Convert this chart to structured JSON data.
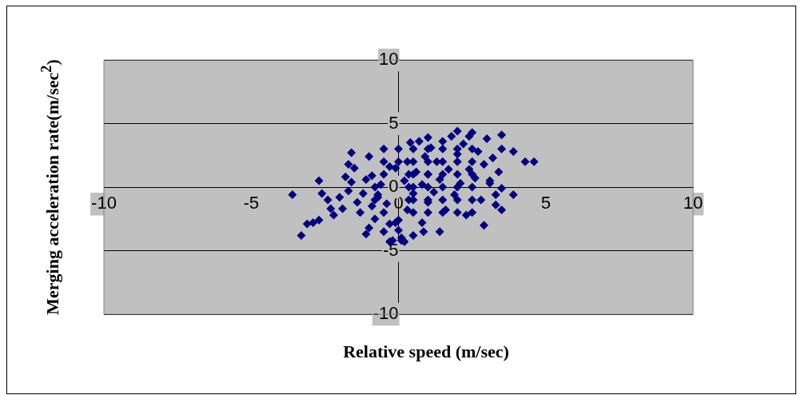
{
  "chart_data": {
    "type": "scatter",
    "xlabel": "Relative speed (m/sec)",
    "ylabel": "Merging acceleration rate(m/sec$^{2}$)",
    "xlim": [
      -10,
      10
    ],
    "xticks": [
      -10,
      -5,
      0,
      5,
      10
    ],
    "ylim": [
      -10,
      10
    ],
    "yticks": [
      -10,
      -5,
      0,
      5,
      10
    ],
    "grid": "y",
    "legend": false,
    "marker": "diamond",
    "series": [
      {
        "color": "#000080",
        "x": [
          -3.6,
          -3.3,
          -3.1,
          -2.9,
          -2.7,
          -2.6,
          -2.7,
          -2.4,
          -2.3,
          -2.2,
          -2.0,
          -1.9,
          -1.8,
          -1.7,
          -1.6,
          -1.7,
          -1.6,
          -1.5,
          -1.4,
          -1.3,
          -1.2,
          -1.1,
          -1.0,
          -1.0,
          -0.9,
          -0.8,
          -0.7,
          -0.6,
          -0.5,
          -0.4,
          -0.3,
          -0.2,
          -0.1,
          0,
          -0.7,
          -0.9,
          -0.3,
          -0.1,
          0.1,
          0.2,
          0.3,
          0.2,
          0.3,
          0.4,
          0.5,
          0.6,
          0.7,
          0.8,
          0.8,
          0.9,
          1.0,
          1.0,
          1.1,
          1.2,
          1.3,
          1.4,
          1.4,
          1.5,
          1.6,
          1.7,
          1.8,
          1.9,
          2.0,
          2.1,
          2.2,
          2.3,
          2.4,
          2.5,
          2.6,
          2.7,
          2.8,
          2.9,
          3.0,
          3.1,
          3.2,
          3.3,
          3.4,
          3.5,
          2.9,
          4.6,
          4.3,
          3.9,
          3.5,
          3.1,
          3.5,
          3.9,
          3.5,
          3.3,
          2.0,
          2.4,
          1.0,
          0.85,
          0.5,
          -0.3,
          0.1,
          -1.1,
          -0.5,
          -0.8,
          -0.8,
          -0.5,
          -0.5,
          -0.5,
          0,
          0.35,
          0.35,
          0.35,
          0,
          0,
          0.5,
          0.5,
          0.5,
          0.5,
          0.5,
          0.5,
          1.0,
          1.0,
          1.0,
          1.0,
          1.0,
          1.0,
          1.5,
          1.5,
          1.5,
          1.5,
          1.5,
          1.5,
          2.0,
          2.0,
          2.0,
          2.0,
          2.0,
          2.0,
          2.5,
          2.5,
          2.5,
          2.5,
          2.5,
          2.5
        ],
        "values": [
          -0.6,
          -3.8,
          -2.9,
          -2.8,
          -2.6,
          -0.5,
          0.5,
          -1.0,
          -1.7,
          -2.2,
          -0.8,
          -1.7,
          0.8,
          -0.3,
          0.4,
          1.8,
          2.7,
          1.5,
          -1.2,
          -2.0,
          -0.5,
          0.6,
          2.4,
          -3.2,
          -1.5,
          -2.5,
          -0.8,
          0.2,
          -3.5,
          -1.3,
          -2.9,
          -4.2,
          -2.8,
          -3.4,
          -0.6,
          0.9,
          1.6,
          1.5,
          -4.0,
          -4.3,
          -1.8,
          0.5,
          2.0,
          3.5,
          -0.5,
          1.2,
          3.6,
          -2.8,
          0.2,
          2.4,
          -1.2,
          1.0,
          3.1,
          -0.4,
          2.0,
          -3.5,
          0.6,
          3.6,
          -1.8,
          1.4,
          4.0,
          -0.6,
          2.6,
          0.3,
          3.4,
          -2.2,
          1.4,
          4.3,
          0.7,
          2.8,
          -1.0,
          1.8,
          3.8,
          0.5,
          2.3,
          -0.6,
          1.2,
          3.0,
          -3.0,
          2.0,
          2.0,
          2.8,
          4.1,
          0.3,
          -0.1,
          -0.6,
          -1.8,
          -1.4,
          4.4,
          4.0,
          3.9,
          -3.5,
          -3.8,
          -4.3,
          -4.2,
          -3.7,
          -2,
          -1,
          0,
          1,
          2,
          3,
          -2.6,
          -1,
          0,
          1,
          2,
          3,
          -2,
          -1,
          0,
          1,
          2,
          3,
          -2,
          -1,
          0,
          1,
          2,
          3,
          -2,
          -1,
          0,
          1,
          2,
          3,
          -2,
          -1,
          0,
          1,
          2,
          3,
          -2,
          -1,
          0,
          1,
          2,
          3
        ]
      }
    ]
  }
}
